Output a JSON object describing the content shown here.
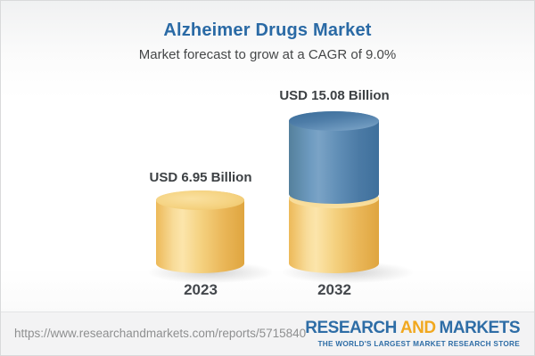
{
  "header": {
    "title": "Alzheimer Drugs Market",
    "subtitle": "Market forecast to grow at a CAGR of 9.0%"
  },
  "chart_data": {
    "type": "bar",
    "style": "3d-cylinder",
    "title": "Alzheimer Drugs Market",
    "subtitle": "Market forecast to grow at a CAGR of 9.0%",
    "cagr_pct": 9.0,
    "unit": "USD Billion",
    "categories": [
      "2023",
      "2032"
    ],
    "values": [
      6.95,
      15.08
    ],
    "value_labels": [
      "USD 6.95 Billion",
      "USD 15.08 Billion"
    ],
    "series": [
      {
        "name": "base-market",
        "color": "#f2c96b",
        "values": [
          6.95,
          6.95
        ]
      },
      {
        "name": "forecast-growth",
        "color": "#5585ad",
        "values": [
          0,
          8.13
        ]
      }
    ],
    "legend": "none",
    "grid": false,
    "axes_visible": false
  },
  "footer": {
    "url": "https://www.researchandmarkets.com/reports/5715840",
    "logo": {
      "word1": "RESEARCH",
      "word2": "AND",
      "word3": "MARKETS",
      "tagline": "THE WORLD'S LARGEST MARKET RESEARCH STORE"
    }
  },
  "colors": {
    "title_blue": "#2a6aa5",
    "bar_yellow": "#f2c96b",
    "bar_blue": "#5585ad",
    "label_dark": "#3d4144",
    "logo_blue": "#2e6da6",
    "logo_orange": "#f1a81f",
    "footer_bg": "#f3f3f4",
    "url_gray": "#8e8f90"
  }
}
